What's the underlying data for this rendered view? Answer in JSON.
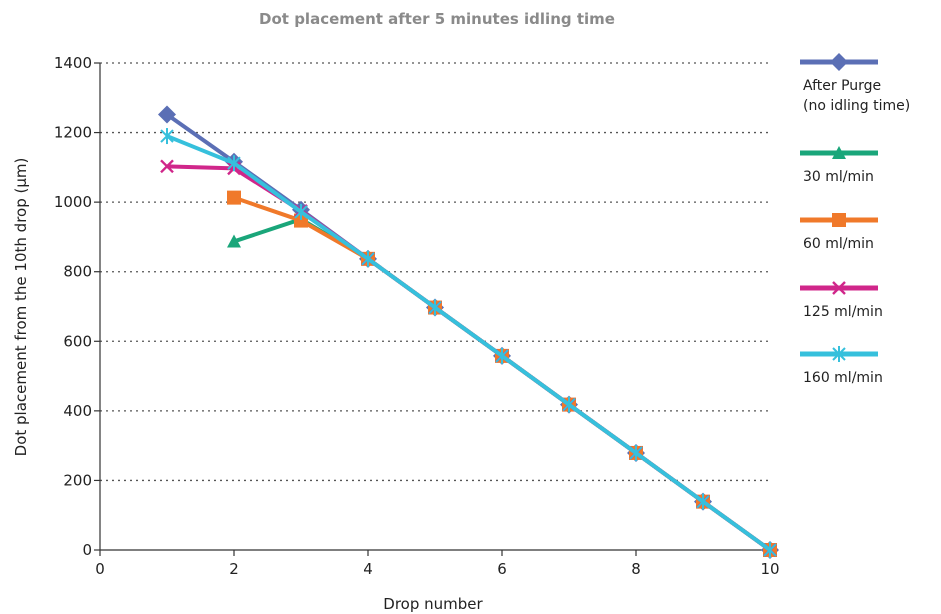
{
  "chart_data": {
    "type": "line",
    "title": "Dot placement after 5 minutes idling time",
    "xlabel": "Drop number",
    "ylabel": "Dot placement from the 10th drop (µm)",
    "xlim": [
      0,
      10
    ],
    "ylim": [
      0,
      1400
    ],
    "xticks": [
      0,
      2,
      4,
      6,
      8,
      10
    ],
    "yticks": [
      0,
      200,
      400,
      600,
      800,
      1000,
      1200,
      1400
    ],
    "grid": "horizontal-dotted",
    "legend_position": "right",
    "series": [
      {
        "name": "After Purge",
        "name_line2": "(no idling time)",
        "color": "#5b6fb5",
        "marker": "diamond",
        "x": [
          1,
          2,
          3,
          4,
          5,
          6,
          7,
          8,
          9,
          10
        ],
        "y": [
          1252,
          1116,
          978,
          837,
          697,
          558,
          418,
          279,
          139,
          0
        ]
      },
      {
        "name": "30 ml/min",
        "color": "#1aa67a",
        "marker": "triangle",
        "x": [
          2,
          3,
          4,
          5,
          6,
          7,
          8,
          9,
          10
        ],
        "y": [
          887,
          951,
          837,
          697,
          558,
          418,
          279,
          139,
          0
        ]
      },
      {
        "name": "60 ml/min",
        "color": "#f0792a",
        "marker": "square",
        "x": [
          2,
          3,
          4,
          5,
          6,
          7,
          8,
          9,
          10
        ],
        "y": [
          1013,
          947,
          837,
          697,
          558,
          418,
          279,
          139,
          0
        ]
      },
      {
        "name": "125 ml/min",
        "color": "#d0268a",
        "marker": "x",
        "x": [
          1,
          2,
          3,
          4,
          5,
          6,
          7,
          8,
          9,
          10
        ],
        "y": [
          1103,
          1097,
          975,
          837,
          697,
          558,
          418,
          279,
          139,
          0
        ]
      },
      {
        "name": "160 ml/min",
        "color": "#36c0dc",
        "marker": "asterisk",
        "x": [
          1,
          2,
          3,
          4,
          5,
          6,
          7,
          8,
          9,
          10
        ],
        "y": [
          1190,
          1112,
          972,
          837,
          697,
          558,
          418,
          279,
          139,
          0
        ]
      }
    ]
  }
}
